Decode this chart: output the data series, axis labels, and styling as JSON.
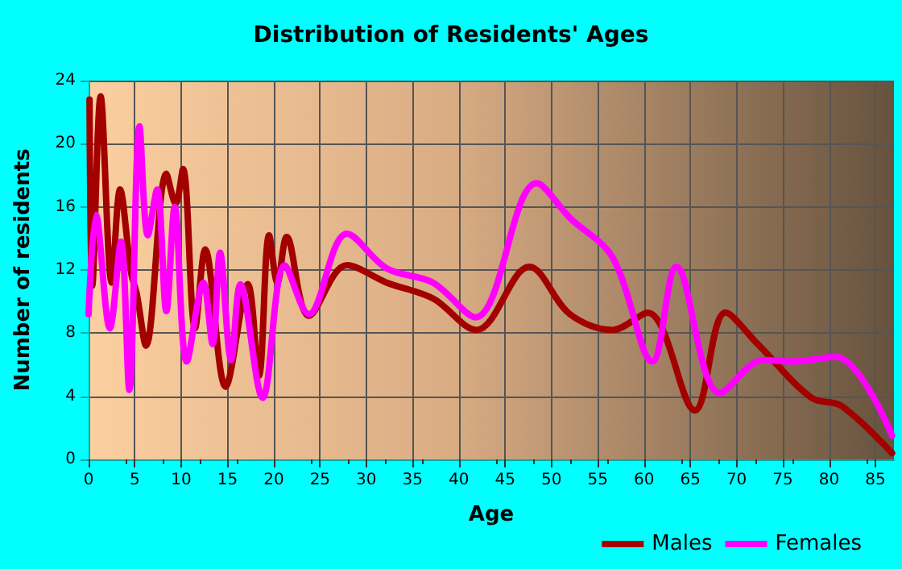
{
  "chart_data": {
    "type": "line",
    "title": "Distribution of Residents' Ages",
    "xlabel": "Age",
    "ylabel": "Number of residents",
    "xlim": [
      0,
      87
    ],
    "xticks": [
      0,
      5,
      10,
      15,
      20,
      25,
      30,
      35,
      40,
      45,
      50,
      55,
      60,
      65,
      70,
      75,
      80,
      85
    ],
    "ylim": [
      0,
      24
    ],
    "yticks": [
      0,
      4,
      8,
      12,
      16,
      20,
      24
    ],
    "grid": true,
    "legend": "bottom right",
    "marker": "none",
    "line_style": "solid",
    "series": [
      {
        "name": "Males",
        "color": "#a30000",
        "x": [
          0.1,
          0.4,
          1.3,
          2.5,
          3.4,
          4.6,
          5.2,
          6.2,
          8.4,
          9.4,
          10.2,
          11.5,
          12.6,
          14.8,
          17.2,
          18.4,
          19.5,
          20.4,
          21.4,
          23.8,
          27.9,
          32.2,
          37.2,
          41.9,
          47.6,
          52,
          56.6,
          60.4,
          65.5,
          68.8,
          72.3,
          78.1,
          81.3,
          86.8
        ],
        "values": [
          22.8,
          11,
          23,
          11.2,
          17.1,
          11.8,
          10.5,
          7.2,
          18.1,
          16.2,
          18.4,
          8.3,
          13.3,
          4.6,
          11.1,
          5.3,
          14.2,
          11.2,
          14.1,
          9.1,
          12.3,
          11.2,
          10.2,
          8.2,
          12.2,
          9.2,
          8.2,
          9.3,
          3.1,
          9.3,
          7.3,
          3.9,
          3.4,
          0.4
        ]
      },
      {
        "name": "Females",
        "color": "#ff00ff",
        "x": [
          0,
          0.8,
          2.3,
          3.5,
          4.4,
          5.5,
          6.4,
          7.4,
          8.4,
          9.3,
          10.6,
          12.4,
          13.4,
          14.2,
          15.4,
          16.4,
          18.8,
          21.2,
          23.8,
          27.9,
          32.2,
          37.2,
          41.8,
          48.4,
          52,
          56.6,
          60.9,
          63.5,
          68.2,
          72.9,
          76,
          80.7,
          86.8
        ],
        "values": [
          9.2,
          15.5,
          8.3,
          13.8,
          4.4,
          21.1,
          14.2,
          17.1,
          9.4,
          16,
          6.2,
          11.2,
          7.3,
          13.1,
          6.3,
          11.1,
          3.9,
          12.3,
          9.2,
          14.3,
          12.1,
          11.2,
          9,
          17.5,
          15.3,
          12.8,
          6.2,
          12.2,
          4.2,
          6.3,
          6.2,
          6.5,
          1.5
        ]
      }
    ]
  }
}
